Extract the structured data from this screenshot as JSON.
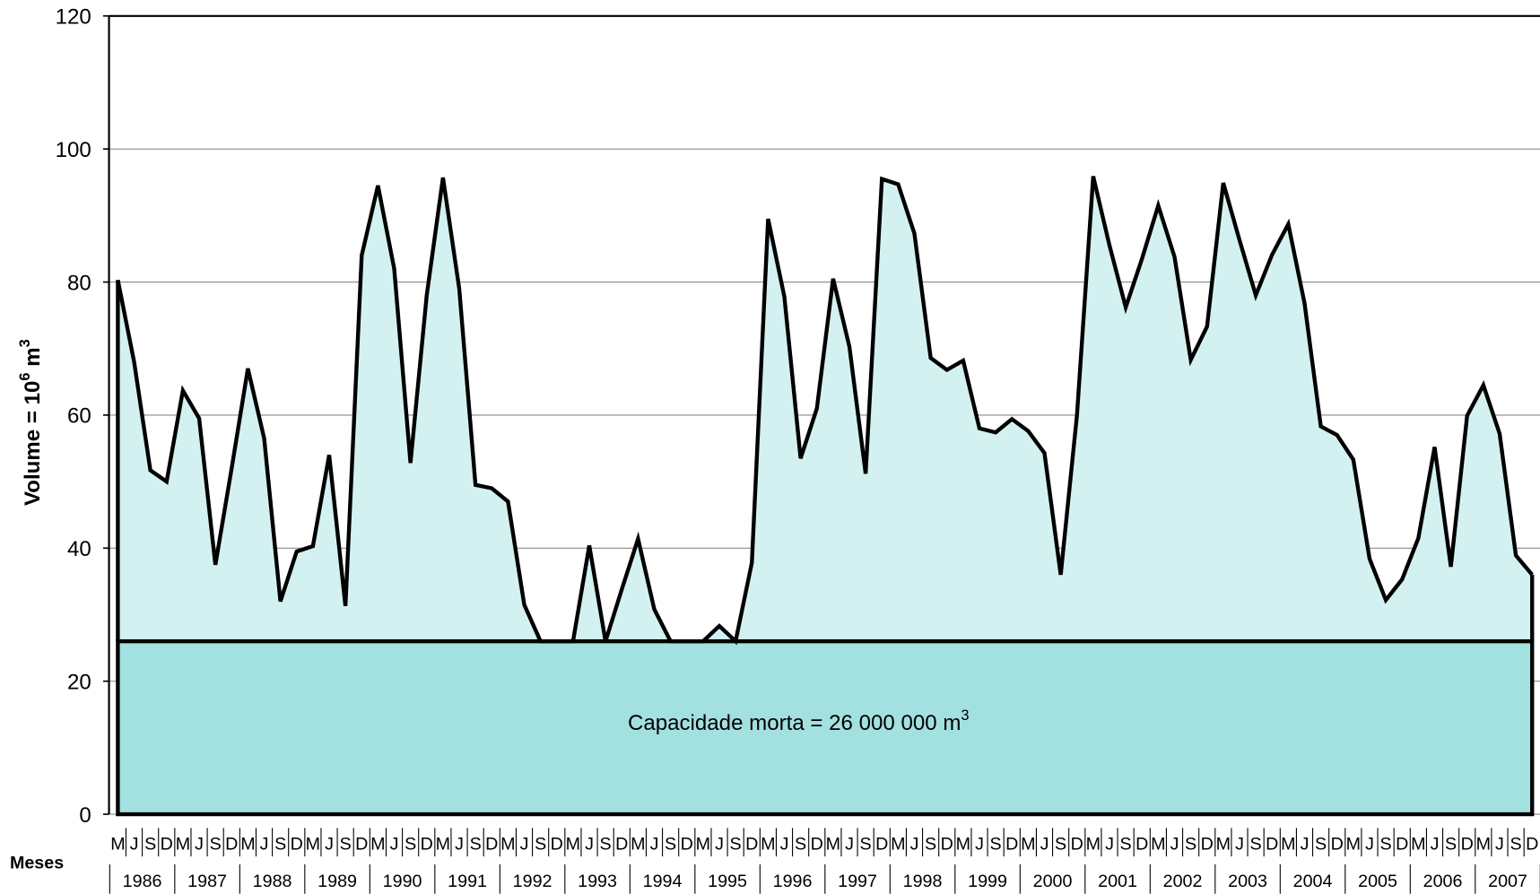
{
  "chart_data": {
    "type": "area",
    "y_label_parts": [
      "Volume = 10",
      "6",
      " m",
      "3"
    ],
    "x_label": "Meses",
    "categories": [
      "M",
      "J",
      "S",
      "D",
      "M",
      "J",
      "S",
      "D",
      "M",
      "J",
      "S",
      "D",
      "M",
      "J",
      "S",
      "D",
      "M",
      "J",
      "S",
      "D",
      "M",
      "J",
      "S",
      "D",
      "M",
      "J",
      "S",
      "D",
      "M",
      "J",
      "S",
      "D",
      "M",
      "J",
      "S",
      "D",
      "M",
      "J",
      "S",
      "D",
      "M",
      "J",
      "S",
      "D",
      "M",
      "J",
      "S",
      "D",
      "M",
      "J",
      "S",
      "D",
      "M",
      "J",
      "S",
      "D",
      "M",
      "J",
      "S",
      "D",
      "M",
      "J",
      "S",
      "D",
      "M",
      "J",
      "S",
      "D",
      "M",
      "J",
      "S",
      "D",
      "M",
      "J",
      "S",
      "D",
      "M",
      "J",
      "S",
      "D",
      "M",
      "J",
      "S",
      "D",
      "M",
      "J",
      "S",
      "D"
    ],
    "years": [
      "1986",
      "1987",
      "1988",
      "1989",
      "1990",
      "1991",
      "1992",
      "1993",
      "1994",
      "1995",
      "1996",
      "1997",
      "1998",
      "1999",
      "2000",
      "2001",
      "2002",
      "2003",
      "2004",
      "2005",
      "2006",
      "2007"
    ],
    "values": [
      80.3,
      68,
      51.7,
      50,
      63.7,
      59.5,
      37.5,
      52,
      67,
      56.5,
      32,
      39.5,
      40.3,
      54,
      31.3,
      84,
      94.5,
      82,
      52.8,
      78,
      95.7,
      79,
      49.5,
      49,
      47,
      31.5,
      26,
      26,
      26,
      40.4,
      26,
      33.8,
      41.4,
      30.8,
      26,
      26,
      26,
      28.3,
      26,
      37.8,
      89.5,
      77.8,
      53.5,
      61,
      80.5,
      70.3,
      51.2,
      95.5,
      94.7,
      87.3,
      68.6,
      66.8,
      68.2,
      58,
      57.4,
      59.4,
      57.6,
      54.3,
      36,
      60,
      95.9,
      85.5,
      76.2,
      83.5,
      91.5,
      83.8,
      68.3,
      73.3,
      94.9,
      86.3,
      78,
      84.1,
      88.7,
      76.8,
      58.3,
      57,
      53.3,
      38.4,
      32.2,
      35.3,
      41.5,
      55.2,
      37.2,
      59.9,
      64.5,
      57.2,
      38.9,
      36
    ],
    "color": "#d4f1f1",
    "dead_capacity": {
      "value": 26,
      "label_parts": [
        "Capacidade morta = 26 000 000 m",
        "3"
      ],
      "color": "#a3e0e0"
    },
    "ylim": [
      0,
      120
    ],
    "yticks": [
      0,
      20,
      40,
      60,
      80,
      100,
      120
    ],
    "grid": true
  }
}
